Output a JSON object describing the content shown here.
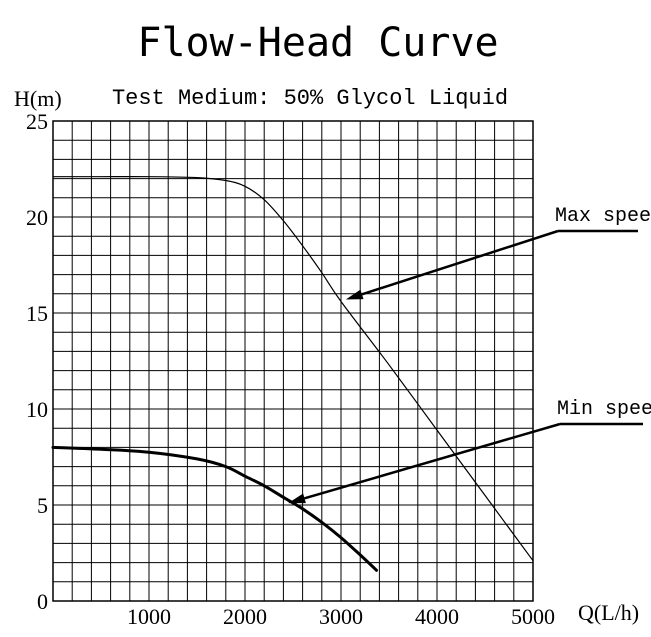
{
  "chart_data": {
    "type": "line",
    "title": "Flow-Head Curve",
    "subtitle": "Test Medium: 50% Glycol Liquid",
    "xlabel": "Q(L/h)",
    "ylabel": "H(m)",
    "xlim": [
      0,
      5000
    ],
    "ylim": [
      0,
      25
    ],
    "x_ticks": [
      1000,
      2000,
      3000,
      4000,
      5000
    ],
    "x_tick_labels": [
      "1000",
      "2000",
      "3000",
      "4000",
      "5000"
    ],
    "y_ticks": [
      0,
      5,
      10,
      15,
      20,
      25
    ],
    "y_tick_labels": [
      "0",
      "5",
      "10",
      "15",
      "20",
      "25"
    ],
    "grid": true,
    "series": [
      {
        "name": "Max speed",
        "x": [
          0,
          500,
          1000,
          1500,
          1800,
          2000,
          2200,
          2400,
          2600,
          2800,
          3000,
          3500,
          4000,
          4500,
          5000
        ],
        "y": [
          22.1,
          22.1,
          22.1,
          22.05,
          21.9,
          21.6,
          20.9,
          19.8,
          18.5,
          17.1,
          15.6,
          12.3,
          8.9,
          5.5,
          2.1
        ],
        "stroke_width": 1.2
      },
      {
        "name": "Min speed",
        "x": [
          0,
          500,
          1000,
          1500,
          1800,
          2000,
          2200,
          2400,
          2600,
          2800,
          3000,
          3200,
          3370
        ],
        "y": [
          8.0,
          7.9,
          7.75,
          7.4,
          7.0,
          6.5,
          6.0,
          5.4,
          4.8,
          4.1,
          3.3,
          2.4,
          1.6
        ],
        "stroke_width": 3
      }
    ],
    "annotations": [
      {
        "text": "Max speed",
        "target": [
          3050,
          15.7
        ]
      },
      {
        "text": "Min speed",
        "target": [
          2450,
          5.1
        ]
      }
    ],
    "colors": {
      "line": "#000000",
      "grid": "#000000",
      "background": "#ffffff"
    }
  }
}
